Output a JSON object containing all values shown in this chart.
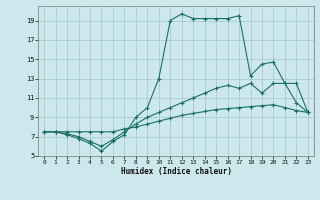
{
  "bg_color": "#cce8ec",
  "grid_color": "#aacccc",
  "line_color": "#1a6e6a",
  "xlabel": "Humidex (Indice chaleur)",
  "xlim": [
    -0.5,
    23.5
  ],
  "ylim": [
    5,
    20.5
  ],
  "yticks": [
    5,
    7,
    9,
    11,
    13,
    15,
    17,
    19
  ],
  "xticks": [
    0,
    1,
    2,
    3,
    4,
    5,
    6,
    7,
    8,
    9,
    10,
    11,
    12,
    13,
    14,
    15,
    16,
    17,
    18,
    19,
    20,
    21,
    22,
    23
  ],
  "curve1_x": [
    0,
    1,
    2,
    3,
    4,
    5,
    6,
    7,
    8,
    9,
    10,
    11,
    12,
    13,
    14,
    15,
    16,
    17,
    18,
    19,
    20,
    21,
    22,
    23
  ],
  "curve1_y": [
    7.5,
    7.5,
    7.5,
    7.5,
    7.5,
    7.5,
    7.5,
    7.8,
    8.0,
    8.3,
    8.6,
    8.9,
    9.2,
    9.4,
    9.6,
    9.8,
    9.9,
    10.0,
    10.1,
    10.2,
    10.3,
    10.0,
    9.7,
    9.5
  ],
  "curve2_x": [
    0,
    1,
    2,
    3,
    4,
    5,
    6,
    7,
    8,
    9,
    10,
    11,
    12,
    13,
    14,
    15,
    16,
    17,
    18,
    19,
    20,
    21,
    22,
    23
  ],
  "curve2_y": [
    7.5,
    7.5,
    7.3,
    7.0,
    6.5,
    6.0,
    6.7,
    7.5,
    8.3,
    9.0,
    9.5,
    10.0,
    10.5,
    11.0,
    11.5,
    12.0,
    12.3,
    12.0,
    12.5,
    11.5,
    12.5,
    12.5,
    10.5,
    9.5
  ],
  "curve3_x": [
    0,
    1,
    2,
    3,
    4,
    5,
    6,
    7,
    8,
    9,
    10,
    11,
    12,
    13,
    14,
    15,
    16,
    17,
    18,
    19,
    20,
    21,
    22,
    23
  ],
  "curve3_y": [
    7.5,
    7.5,
    7.2,
    6.8,
    6.3,
    5.5,
    6.5,
    7.2,
    9.0,
    10.0,
    13.0,
    19.0,
    19.7,
    19.2,
    19.2,
    19.2,
    19.2,
    19.5,
    13.3,
    14.5,
    14.7,
    12.5,
    12.5,
    9.5
  ]
}
